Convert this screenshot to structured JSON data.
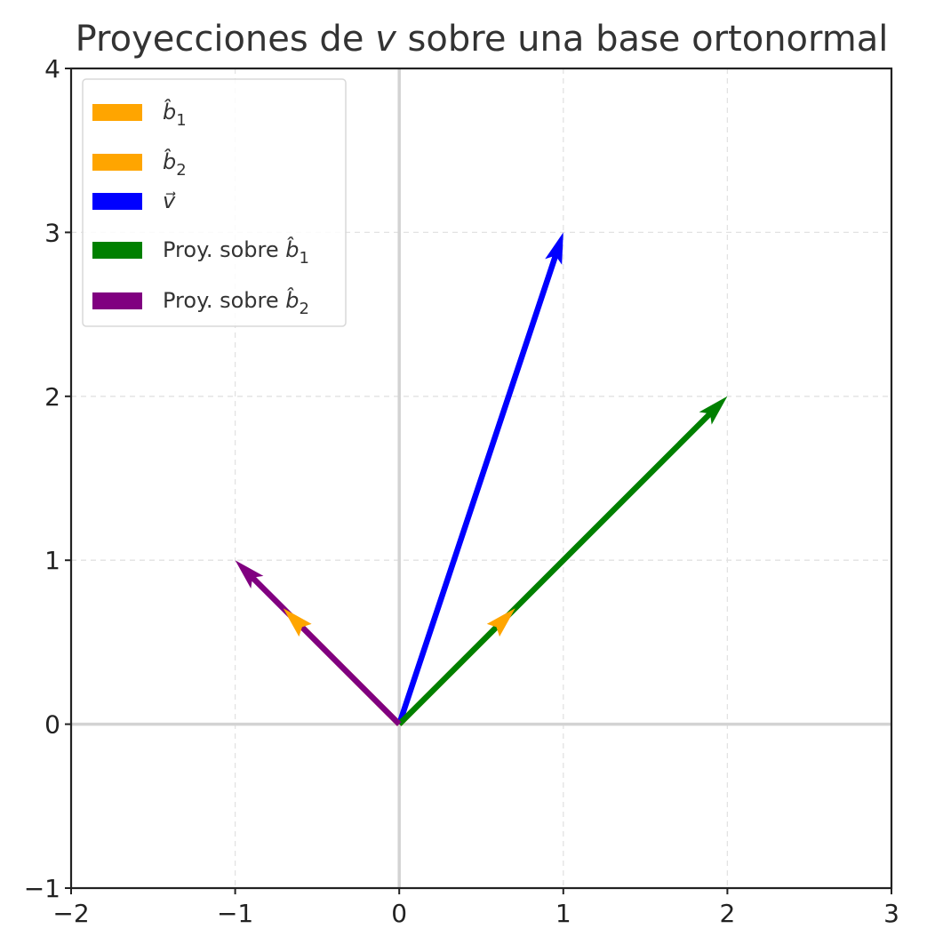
{
  "chart_data": {
    "type": "quiver",
    "title": "Proyecciones de v⃗ sobre una base ortonormal",
    "title_parts": {
      "pre": "Proyecciones de ",
      "symbol": "v",
      "post": " sobre una base ortonormal"
    },
    "xlabel": "",
    "ylabel": "",
    "xlim": [
      -2,
      3
    ],
    "ylim": [
      -1,
      4
    ],
    "x_ticks": [
      -2,
      -1,
      0,
      1,
      2,
      3
    ],
    "y_ticks": [
      -1,
      0,
      1,
      2,
      3,
      4
    ],
    "x_tick_labels": [
      "−2",
      "−1",
      "0",
      "1",
      "2",
      "3"
    ],
    "y_tick_labels": [
      "−1",
      "0",
      "1",
      "2",
      "3",
      "4"
    ],
    "grid": true,
    "reference_lines": {
      "x": 0,
      "y": 0
    },
    "legend_position": "upper-left",
    "series": [
      {
        "name": "b̂₁",
        "label_parts": {
          "pre": "",
          "sym": "b",
          "sub": "1",
          "hat": true
        },
        "color": "#FFA500",
        "start": [
          0,
          0
        ],
        "end": [
          0.707,
          0.707
        ]
      },
      {
        "name": "b̂₂",
        "label_parts": {
          "pre": "",
          "sym": "b",
          "sub": "2",
          "hat": true
        },
        "color": "#FFA500",
        "start": [
          0,
          0
        ],
        "end": [
          -0.707,
          0.707
        ]
      },
      {
        "name": "v⃗",
        "label_parts": {
          "pre": "",
          "sym": "v",
          "sub": "",
          "hat": false
        },
        "color": "#0000FF",
        "start": [
          0,
          0
        ],
        "end": [
          1,
          3
        ]
      },
      {
        "name": "Proy. sobre b̂₁",
        "label_parts": {
          "pre": "Proy. sobre ",
          "sym": "b",
          "sub": "1",
          "hat": true
        },
        "color": "#008000",
        "start": [
          0,
          0
        ],
        "end": [
          2,
          2
        ]
      },
      {
        "name": "Proy. sobre b̂₂",
        "label_parts": {
          "pre": "Proy. sobre ",
          "sym": "b",
          "sub": "2",
          "hat": true
        },
        "color": "#800080",
        "start": [
          0,
          0
        ],
        "end": [
          -1,
          1
        ]
      }
    ]
  }
}
